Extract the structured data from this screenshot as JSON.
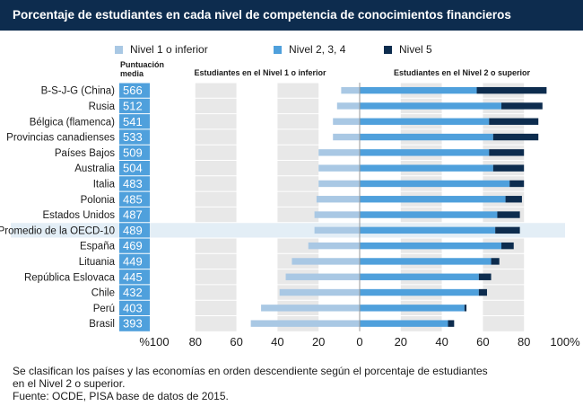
{
  "title": "Porcentaje de estudiantes en cada nivel de competencia de conocimientos financieros",
  "legend": {
    "level1": "Nivel 1 o inferior",
    "level234": "Nivel 2, 3, 4",
    "level5": "Nivel 5"
  },
  "score_header": [
    "Puntuación",
    "media"
  ],
  "left_subtitle": "Estudiantes en el Nivel 1 o inferior",
  "right_subtitle": "Estudiantes en el Nivel 2 o superior",
  "footnote": [
    "Se clasifican los países y las economías en orden descendiente según el porcentaje de estudiantes",
    "en el Nivel 2 o superior.",
    "Fuente: OCDE, PISA base de datos de 2015."
  ],
  "colors": {
    "title_bg": "#0d2c4e",
    "level1": "#a9c8e4",
    "level234": "#4fa0dc",
    "level5": "#0d2c4e",
    "score_bg": "#4fa0dc",
    "stripe": "#e8e8e8",
    "highlight": "#e3eef6"
  },
  "chart_data": {
    "type": "bar",
    "orientation": "horizontal-diverging",
    "categories": [
      "B-S-J-G (China)",
      "Rusia",
      "Bélgica (flamenca)",
      "Provincias canadienses",
      "Países Bajos",
      "Australia",
      "Italia",
      "Polonia",
      "Estados Unidos",
      "Promedio de la OECD-10",
      "España",
      "Lituania",
      "República Eslovaca",
      "Chile",
      "Perú",
      "Brasil"
    ],
    "scores": [
      566,
      512,
      541,
      533,
      509,
      504,
      483,
      485,
      487,
      489,
      469,
      449,
      445,
      432,
      403,
      393
    ],
    "highlight_category": "Promedio de la OECD-10",
    "series": [
      {
        "name": "Nivel 1 o inferior",
        "direction": "left",
        "values": [
          9,
          11,
          13,
          13,
          20,
          20,
          20,
          21,
          22,
          22,
          25,
          33,
          36,
          39,
          48,
          53
        ]
      },
      {
        "name": "Nivel 2, 3, 4",
        "direction": "right",
        "values": [
          57,
          69,
          63,
          65,
          63,
          65,
          73,
          71,
          67,
          66,
          69,
          64,
          58,
          58,
          51,
          43
        ]
      },
      {
        "name": "Nivel 5",
        "direction": "right",
        "values": [
          34,
          20,
          24,
          22,
          17,
          15,
          7,
          8,
          11,
          12,
          6,
          4,
          6,
          4,
          1,
          3
        ]
      }
    ],
    "xlim": [
      -100,
      100
    ],
    "x_ticks": [
      -100,
      -80,
      -60,
      -40,
      -20,
      0,
      20,
      40,
      60,
      80,
      100
    ],
    "x_tick_labels": [
      "%100",
      "80",
      "60",
      "40",
      "20",
      "0",
      "20",
      "40",
      "60",
      "80",
      "100%"
    ]
  }
}
